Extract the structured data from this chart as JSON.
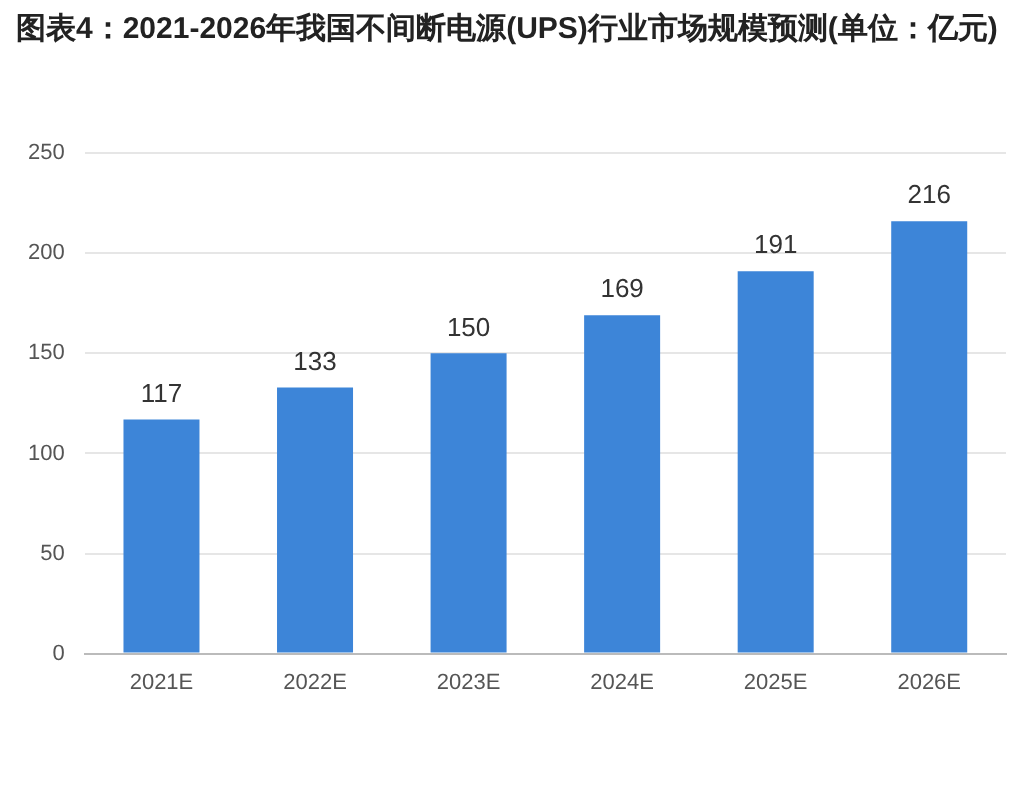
{
  "chart_data": {
    "type": "bar",
    "title": "图表4：2021-2026年我国不间断电源(UPS)行业市场规模预测(单位：亿元)",
    "categories": [
      "2021E",
      "2022E",
      "2023E",
      "2024E",
      "2025E",
      "2026E"
    ],
    "values": [
      117,
      133,
      150,
      169,
      191,
      216
    ],
    "color": "#3d85d8",
    "ylim": [
      0,
      250
    ],
    "yticks": [
      0,
      50,
      100,
      150,
      200,
      250
    ],
    "grid": "y",
    "data_labels": true
  }
}
